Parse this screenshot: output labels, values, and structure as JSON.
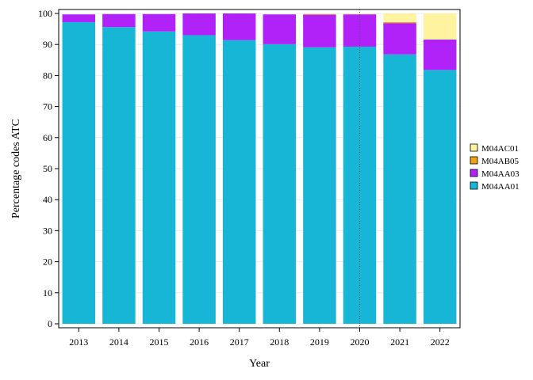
{
  "chart_data": {
    "type": "bar",
    "stacked": true,
    "title": "",
    "xlabel": "Year",
    "ylabel": "Percentage codes ATC",
    "ylim": [
      0,
      100
    ],
    "yticks": [
      0,
      10,
      20,
      30,
      40,
      50,
      60,
      70,
      80,
      90,
      100
    ],
    "grid": true,
    "legend_position": "right",
    "categories": [
      "2013",
      "2014",
      "2015",
      "2016",
      "2017",
      "2018",
      "2019",
      "2020",
      "2021",
      "2022"
    ],
    "reference_line": {
      "category": "2020",
      "style": "dotted",
      "color": "#555555"
    },
    "series": [
      {
        "name": "M04AA01",
        "color": "#17B6D6",
        "values": [
          97.2,
          95.6,
          94.2,
          93.0,
          91.4,
          90.1,
          89.1,
          89.3,
          86.8,
          81.8
        ]
      },
      {
        "name": "M04AA03",
        "color": "#B122F9",
        "values": [
          2.5,
          4.2,
          5.6,
          7.0,
          8.6,
          9.6,
          10.5,
          10.4,
          10.1,
          9.8
        ]
      },
      {
        "name": "M04AB05",
        "color": "#F0A115",
        "values": [
          0,
          0,
          0,
          0,
          0,
          0,
          0.2,
          0.1,
          0.3,
          0
        ]
      },
      {
        "name": "M04AC01",
        "color": "#FFF3A0",
        "values": [
          0,
          0,
          0,
          0,
          0,
          0,
          0,
          0,
          2.8,
          8.4
        ]
      }
    ]
  }
}
